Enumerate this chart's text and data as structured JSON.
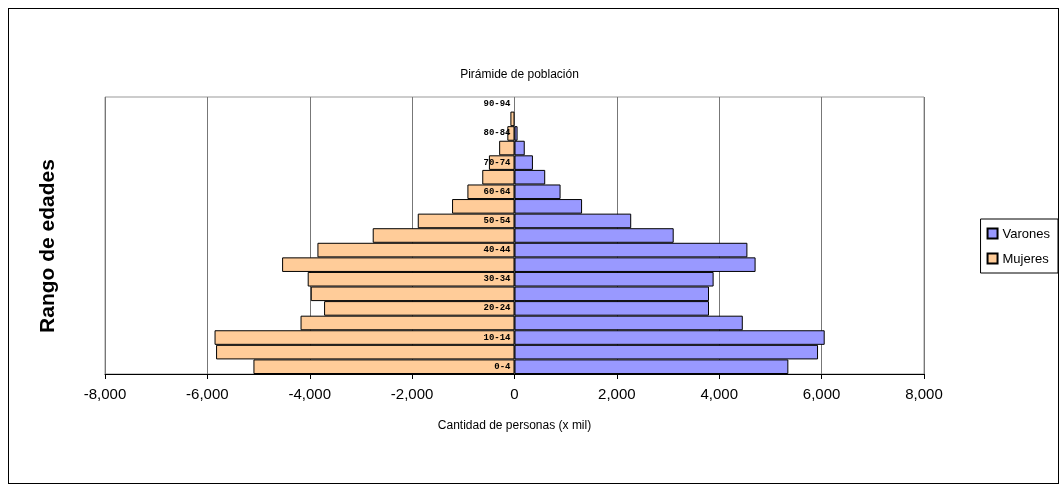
{
  "chart_data": {
    "type": "bar",
    "orientation": "horizontal",
    "title": "Pirámide de población",
    "xlabel": "Cantidad de personas (x mil)",
    "ylabel": "Rango de edades",
    "categories": [
      "90-94",
      null,
      "80-84",
      null,
      "70-74",
      null,
      "60-64",
      null,
      "50-54",
      null,
      "40-44",
      null,
      "30-34",
      null,
      "20-24",
      null,
      "10-14",
      null,
      "0-4"
    ],
    "series": [
      {
        "name": "Varones",
        "color": "#9999ff",
        "values": [
          null,
          null,
          60,
          200,
          360,
          600,
          900,
          1320,
          2280,
          3110,
          4550,
          4710,
          3890,
          3800,
          3800,
          4460,
          6060,
          5930,
          5350
        ]
      },
      {
        "name": "Mujeres",
        "color": "#ffcc99",
        "values": [
          null,
          -80,
          -140,
          -300,
          -500,
          -630,
          -920,
          -1220,
          -1890,
          -2770,
          -3850,
          -4540,
          -4040,
          -3980,
          -3720,
          -4180,
          -5860,
          -5830,
          -5100
        ]
      }
    ],
    "xlim": [
      -8000,
      8000
    ],
    "xticks": [
      {
        "value": -8000,
        "label": "-8,000"
      },
      {
        "value": -6000,
        "label": "-6,000"
      },
      {
        "value": -4000,
        "label": "-4,000"
      },
      {
        "value": -2000,
        "label": "-2,000"
      },
      0,
      {
        "value": 2000,
        "label": "2,000"
      },
      {
        "value": 4000,
        "label": "4,000"
      },
      {
        "value": 6000,
        "label": "6,000"
      },
      {
        "value": 8000,
        "label": "8,000"
      }
    ],
    "stacked": true,
    "grid": "x",
    "legend": "right"
  }
}
